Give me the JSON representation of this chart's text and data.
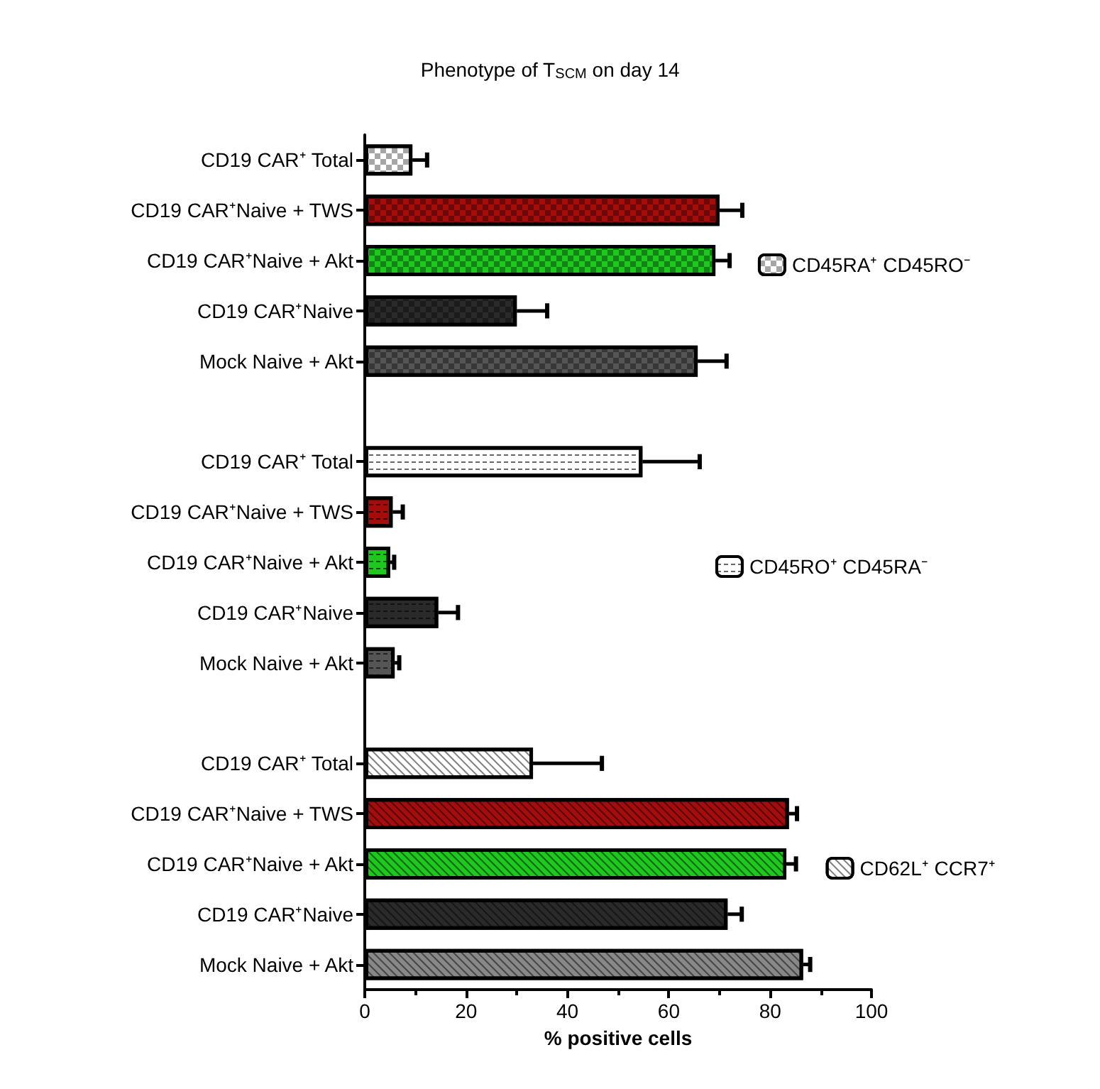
{
  "chart_data": {
    "type": "bar",
    "orientation": "horizontal",
    "title": "Phenotype of T$_{SCM}$ on day 14",
    "xlabel": "% positive cells",
    "categories": [
      "CD19 CAR⁺ Total",
      "CD19 CAR⁺Naive + TWS",
      "CD19 CAR⁺Naive + Akt",
      "CD19 CAR⁺Naive",
      "Mock Naive + Akt",
      null,
      "CD19 CAR⁺ Total",
      "CD19 CAR⁺Naive + TWS",
      "CD19 CAR⁺Naive + Akt",
      "CD19 CAR⁺Naive",
      "Mock Naive + Akt",
      null,
      "CD19 CAR⁺ Total",
      "CD19 CAR⁺Naive + TWS",
      "CD19 CAR⁺Naive + Akt",
      "CD19 CAR⁺Naive",
      "Mock Naive + Akt"
    ],
    "series": [
      {
        "name": "CD45RA⁺ CD45RO⁻",
        "color": "#ffffff",
        "colors": [
          "#ffffff",
          "#a50d0d",
          "#1ec81e",
          "#2a2a2a",
          "#555555",
          null,
          null,
          null,
          null,
          null,
          null,
          null,
          null,
          null,
          null,
          null,
          null
        ],
        "values": [
          9.4,
          70,
          69.2,
          30,
          65.7,
          null,
          null,
          null,
          null,
          null,
          null,
          null,
          null,
          null,
          null,
          null,
          null
        ],
        "errors": [
          2.9,
          4.5,
          2.8,
          6,
          5.7,
          null,
          null,
          null,
          null,
          null,
          null,
          null,
          null,
          null,
          null,
          null,
          null
        ]
      },
      {
        "name": "CD45RO⁺ CD45RA⁻",
        "color": "#ffffff",
        "colors": [
          null,
          null,
          null,
          null,
          null,
          null,
          "#ffffff",
          "#a50d0d",
          "#1ec81e",
          "#2a2a2a",
          "#555555",
          null,
          null,
          null,
          null,
          null,
          null
        ],
        "values": [
          null,
          null,
          null,
          null,
          null,
          null,
          54.8,
          5.5,
          5,
          14.5,
          5.9,
          null,
          null,
          null,
          null,
          null,
          null
        ],
        "errors": [
          null,
          null,
          null,
          null,
          null,
          null,
          11.3,
          2,
          0.8,
          3.9,
          0.9,
          null,
          null,
          null,
          null,
          null,
          null
        ]
      },
      {
        "name": "CD62L⁺ CCR7⁺",
        "color": "#ffffff",
        "colors": [
          null,
          null,
          null,
          null,
          null,
          null,
          null,
          null,
          null,
          null,
          null,
          null,
          "#ffffff",
          "#a50d0d",
          "#1ec81e",
          "#2a2a2a",
          "#888888"
        ],
        "values": [
          null,
          null,
          null,
          null,
          null,
          null,
          null,
          null,
          null,
          null,
          null,
          null,
          33.2,
          83.7,
          83.2,
          71.6,
          86.5
        ],
        "errors": [
          null,
          null,
          null,
          null,
          null,
          null,
          null,
          null,
          null,
          null,
          null,
          null,
          13.6,
          1.6,
          1.9,
          2.8,
          1.4
        ]
      }
    ],
    "xlim": [
      0,
      100
    ],
    "xticks": [
      0,
      20,
      40,
      60,
      80,
      100
    ],
    "legend": "right",
    "grid": false
  }
}
